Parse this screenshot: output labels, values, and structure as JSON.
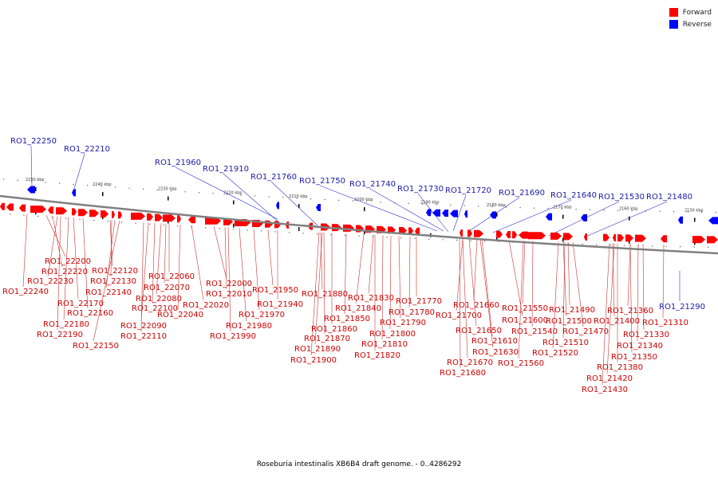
{
  "caption": "Roseburia intestinalis XB6B4 draft genome. - 0..4286292",
  "legend": {
    "items": [
      {
        "label": "Forward",
        "color": "#ff0000"
      },
      {
        "label": "Reverse",
        "color": "#0000ff"
      }
    ]
  },
  "colors": {
    "forward": "#ff0000",
    "reverse": "#0000ff",
    "backbone": "#808080",
    "forward_label": "#cc0000",
    "reverse_label": "#1a1aa6"
  },
  "scale_ticks": [
    "2250 kbp",
    "2240 kbp",
    "2230 kbp",
    "2220 kbp",
    "2210 kbp",
    "2200 kbp",
    "2190 kbp",
    "2180 kbp",
    "2170 kbp",
    "2160 kbp",
    "2150 kbp"
  ],
  "reverse_genes": [
    "RO1_22250",
    "RO1_22210",
    "RO1_21960",
    "RO1_21910",
    "RO1_21760",
    "RO1_21750",
    "RO1_21740",
    "RO1_21730",
    "RO1_21720",
    "RO1_21690",
    "RO1_21640",
    "RO1_21530",
    "RO1_21480",
    "RO1_21290"
  ],
  "forward_genes": [
    "RO1_22200",
    "RO1_22220",
    "RO1_22230",
    "RO1_22240",
    "RO1_22120",
    "RO1_22130",
    "RO1_22140",
    "RO1_22170",
    "RO1_22160",
    "RO1_22180",
    "RO1_22190",
    "RO1_22150",
    "RO1_22060",
    "RO1_22070",
    "RO1_22080",
    "RO1_22100",
    "RO1_22090",
    "RO1_22110",
    "RO1_22040",
    "RO1_22020",
    "RO1_22000",
    "RO1_22010",
    "RO1_21950",
    "RO1_21940",
    "RO1_21970",
    "RO1_21980",
    "RO1_21990",
    "RO1_21880",
    "RO1_21830",
    "RO1_21840",
    "RO1_21850",
    "RO1_21860",
    "RO1_21870",
    "RO1_21890",
    "RO1_21900",
    "RO1_21770",
    "RO1_21780",
    "RO1_21790",
    "RO1_21800",
    "RO1_21810",
    "RO1_21820",
    "RO1_21660",
    "RO1_21700",
    "RO1_21650",
    "RO1_21610",
    "RO1_21600",
    "RO1_21630",
    "RO1_21670",
    "RO1_21680",
    "RO1_21550",
    "RO1_21540",
    "RO1_21520",
    "RO1_21560",
    "RO1_21490",
    "RO1_21500",
    "RO1_21470",
    "RO1_21510",
    "RO1_21360",
    "RO1_21400",
    "RO1_21330",
    "RO1_21340",
    "RO1_21350",
    "RO1_21380",
    "RO1_21420",
    "RO1_21430",
    "RO1_21310"
  ]
}
